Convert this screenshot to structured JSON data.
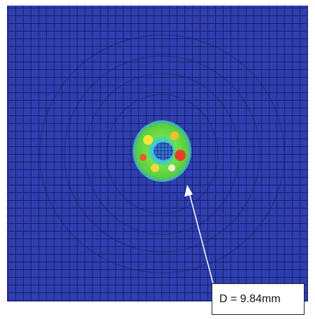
{
  "annotation": {
    "label": "D = 9.84mm"
  }
}
